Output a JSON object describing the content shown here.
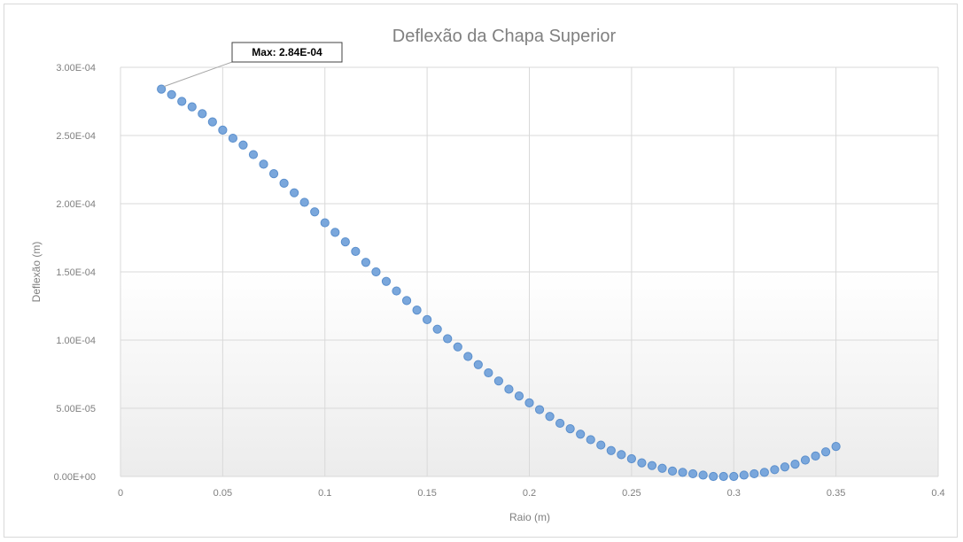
{
  "chart_data": {
    "type": "scatter",
    "title": "Deflexão da Chapa Superior",
    "xlabel": "Raio (m)",
    "ylabel": "Deflexão (m)",
    "xlim": [
      0,
      0.4
    ],
    "ylim": [
      0,
      0.0003
    ],
    "x_ticks": [
      "0",
      "0.05",
      "0.1",
      "0.15",
      "0.2",
      "0.25",
      "0.3",
      "0.35",
      "0.4"
    ],
    "x_tick_values": [
      0,
      0.05,
      0.1,
      0.15,
      0.2,
      0.25,
      0.3,
      0.35,
      0.4
    ],
    "y_ticks": [
      "0.00E+00",
      "5.00E-05",
      "1.00E-04",
      "1.50E-04",
      "2.00E-04",
      "2.50E-04",
      "3.00E-04"
    ],
    "y_tick_values": [
      0,
      5e-05,
      0.0001,
      0.00015,
      0.0002,
      0.00025,
      0.0003
    ],
    "grid": true,
    "legend": "none",
    "marker_color": "#7aa7dc",
    "marker_edge_color": "#5b8fcc",
    "annotation": {
      "text": "Max: 2.84E-04",
      "x": 0.02,
      "y": 0.000284
    },
    "series": [
      {
        "x": [
          0.02,
          0.025,
          0.03,
          0.035,
          0.04,
          0.045,
          0.05,
          0.055,
          0.06,
          0.065,
          0.07,
          0.075,
          0.08,
          0.085,
          0.09,
          0.095,
          0.1,
          0.105,
          0.11,
          0.115,
          0.12,
          0.125,
          0.13,
          0.135,
          0.14,
          0.145,
          0.15,
          0.155,
          0.16,
          0.165,
          0.17,
          0.175,
          0.18,
          0.185,
          0.19,
          0.195,
          0.2,
          0.205,
          0.21,
          0.215,
          0.22,
          0.225,
          0.23,
          0.235,
          0.24,
          0.245,
          0.25,
          0.255,
          0.26,
          0.265,
          0.27,
          0.275,
          0.28,
          0.285,
          0.29,
          0.295,
          0.3,
          0.305,
          0.31,
          0.315,
          0.32,
          0.325,
          0.33,
          0.335,
          0.34,
          0.345,
          0.35
        ],
        "y": [
          0.000284,
          0.00028,
          0.000275,
          0.000271,
          0.000266,
          0.00026,
          0.000254,
          0.000248,
          0.000243,
          0.000236,
          0.000229,
          0.000222,
          0.000215,
          0.000208,
          0.000201,
          0.000194,
          0.000186,
          0.000179,
          0.000172,
          0.000165,
          0.000157,
          0.00015,
          0.000143,
          0.000136,
          0.000129,
          0.000122,
          0.000115,
          0.000108,
          0.000101,
          9.5e-05,
          8.8e-05,
          8.2e-05,
          7.6e-05,
          7e-05,
          6.4e-05,
          5.9e-05,
          5.4e-05,
          4.9e-05,
          4.4e-05,
          3.9e-05,
          3.5e-05,
          3.1e-05,
          2.7e-05,
          2.3e-05,
          1.9e-05,
          1.6e-05,
          1.3e-05,
          1e-05,
          8e-06,
          6e-06,
          4e-06,
          3e-06,
          2e-06,
          1e-06,
          0.0,
          0.0,
          0.0,
          1e-06,
          2e-06,
          3e-06,
          5e-06,
          7e-06,
          9e-06,
          1.2e-05,
          1.5e-05,
          1.8e-05,
          2.2e-05
        ]
      }
    ]
  }
}
